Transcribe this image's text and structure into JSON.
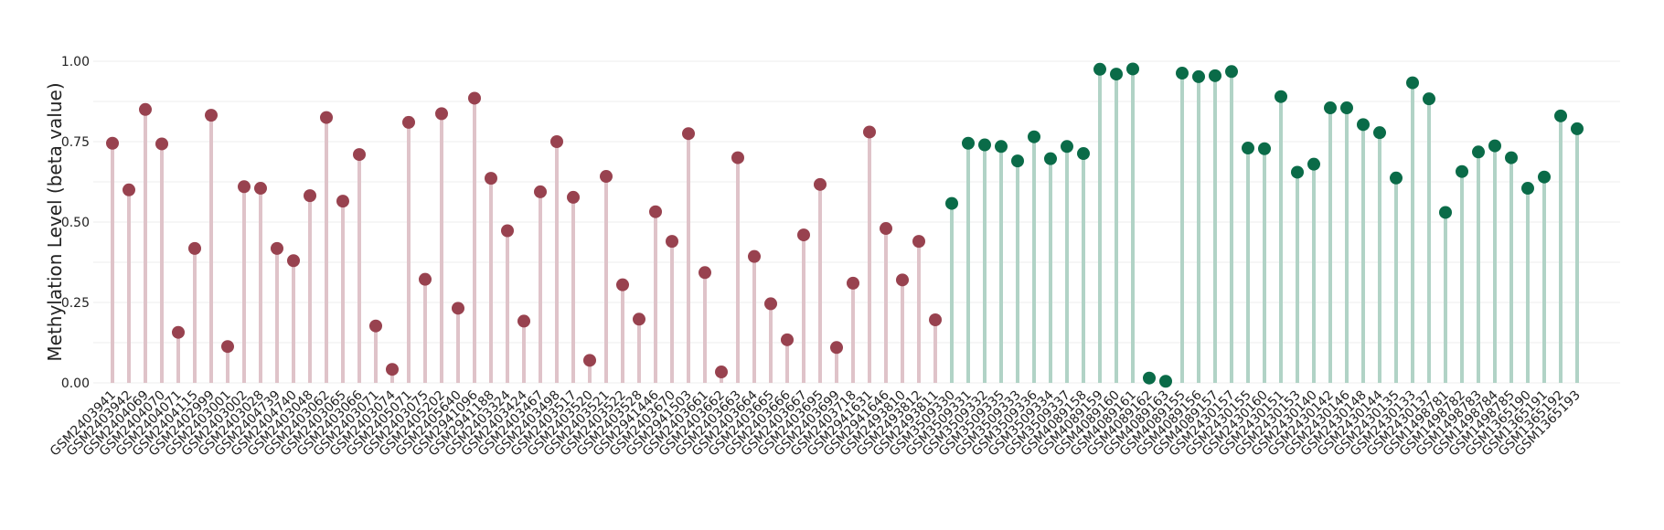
{
  "chart_data": {
    "type": "lollipop",
    "title": "",
    "xlabel": "",
    "ylabel": "Methylation Level (beta value)",
    "ylim": [
      0,
      1
    ],
    "yticks": [
      "0.00",
      "0.25",
      "0.50",
      "0.75",
      "1.00"
    ],
    "grid": true,
    "legend": "none",
    "colors": {
      "group1_stem": "#dfc3c9",
      "group1_point": "#98424f",
      "group2_stem": "#b1d3c6",
      "group2_point": "#0a6b48",
      "grid": "#eeeeee",
      "text": "#222222"
    },
    "categories": [
      "GSM2403941",
      "GSM2403942",
      "GSM2404069",
      "GSM2404070",
      "GSM2404071",
      "GSM2404115",
      "GSM2402999",
      "GSM2403001",
      "GSM2403002",
      "GSM2403028",
      "GSM2404739",
      "GSM2404740",
      "GSM2403048",
      "GSM2403062",
      "GSM2403065",
      "GSM2403066",
      "GSM2403071",
      "GSM2403074",
      "GSM2405071",
      "GSM2403075",
      "GSM2405202",
      "GSM2405640",
      "GSM2941096",
      "GSM2941188",
      "GSM2403324",
      "GSM2403424",
      "GSM2403467",
      "GSM2403498",
      "GSM2403517",
      "GSM2403520",
      "GSM2403521",
      "GSM2403522",
      "GSM2403528",
      "GSM2941446",
      "GSM2403670",
      "GSM2941503",
      "GSM2403661",
      "GSM2403662",
      "GSM2403663",
      "GSM2403664",
      "GSM2403665",
      "GSM2403666",
      "GSM2403667",
      "GSM2403695",
      "GSM2403699",
      "GSM2403718",
      "GSM2941631",
      "GSM2941646",
      "GSM2493810",
      "GSM2493812",
      "GSM2493811",
      "GSM3509330",
      "GSM3509331",
      "GSM3509332",
      "GSM3509335",
      "GSM3509333",
      "GSM3509336",
      "GSM3509334",
      "GSM3509337",
      "GSM4089158",
      "GSM4089159",
      "GSM4089160",
      "GSM4089161",
      "GSM4089162",
      "GSM4089163",
      "GSM4089155",
      "GSM4089156",
      "GSM4089157",
      "GSM2430157",
      "GSM2430155",
      "GSM2430160",
      "GSM2430151",
      "GSM2430153",
      "GSM2430140",
      "GSM2430142",
      "GSM2430146",
      "GSM2430148",
      "GSM2430144",
      "GSM2430135",
      "GSM2430133",
      "GSM2430137",
      "GSM1498781",
      "GSM1498782",
      "GSM1498783",
      "GSM1498784",
      "GSM1498785",
      "GSM1365190",
      "GSM1365191",
      "GSM1365192",
      "GSM1365193"
    ],
    "values": [
      0.745,
      0.6,
      0.85,
      0.743,
      0.157,
      0.418,
      0.832,
      0.113,
      0.61,
      0.605,
      0.418,
      0.38,
      0.582,
      0.825,
      0.565,
      0.71,
      0.177,
      0.042,
      0.81,
      0.322,
      0.837,
      0.232,
      0.885,
      0.636,
      0.473,
      0.192,
      0.594,
      0.75,
      0.577,
      0.07,
      0.642,
      0.305,
      0.198,
      0.532,
      0.44,
      0.775,
      0.343,
      0.034,
      0.7,
      0.393,
      0.246,
      0.134,
      0.46,
      0.617,
      0.11,
      0.31,
      0.78,
      0.48,
      0.32,
      0.44,
      0.196,
      0.558,
      0.745,
      0.74,
      0.735,
      0.69,
      0.765,
      0.697,
      0.735,
      0.713,
      0.975,
      0.96,
      0.976,
      0.015,
      0.005,
      0.963,
      0.952,
      0.955,
      0.968,
      0.73,
      0.728,
      0.89,
      0.655,
      0.68,
      0.855,
      0.855,
      0.803,
      0.778,
      0.637,
      0.933,
      0.883,
      0.53,
      0.657,
      0.718,
      0.737,
      0.7,
      0.605,
      0.64,
      0.83,
      0.79
    ],
    "groups": [
      1,
      1,
      1,
      1,
      1,
      1,
      1,
      1,
      1,
      1,
      1,
      1,
      1,
      1,
      1,
      1,
      1,
      1,
      1,
      1,
      1,
      1,
      1,
      1,
      1,
      1,
      1,
      1,
      1,
      1,
      1,
      1,
      1,
      1,
      1,
      1,
      1,
      1,
      1,
      1,
      1,
      1,
      1,
      1,
      1,
      1,
      1,
      1,
      1,
      1,
      1,
      2,
      2,
      2,
      2,
      2,
      2,
      2,
      2,
      2,
      2,
      2,
      2,
      2,
      2,
      2,
      2,
      2,
      2,
      2,
      2,
      2,
      2,
      2,
      2,
      2,
      2,
      2,
      2,
      2,
      2,
      2,
      2,
      2,
      2,
      2,
      2,
      2,
      2,
      2
    ]
  }
}
